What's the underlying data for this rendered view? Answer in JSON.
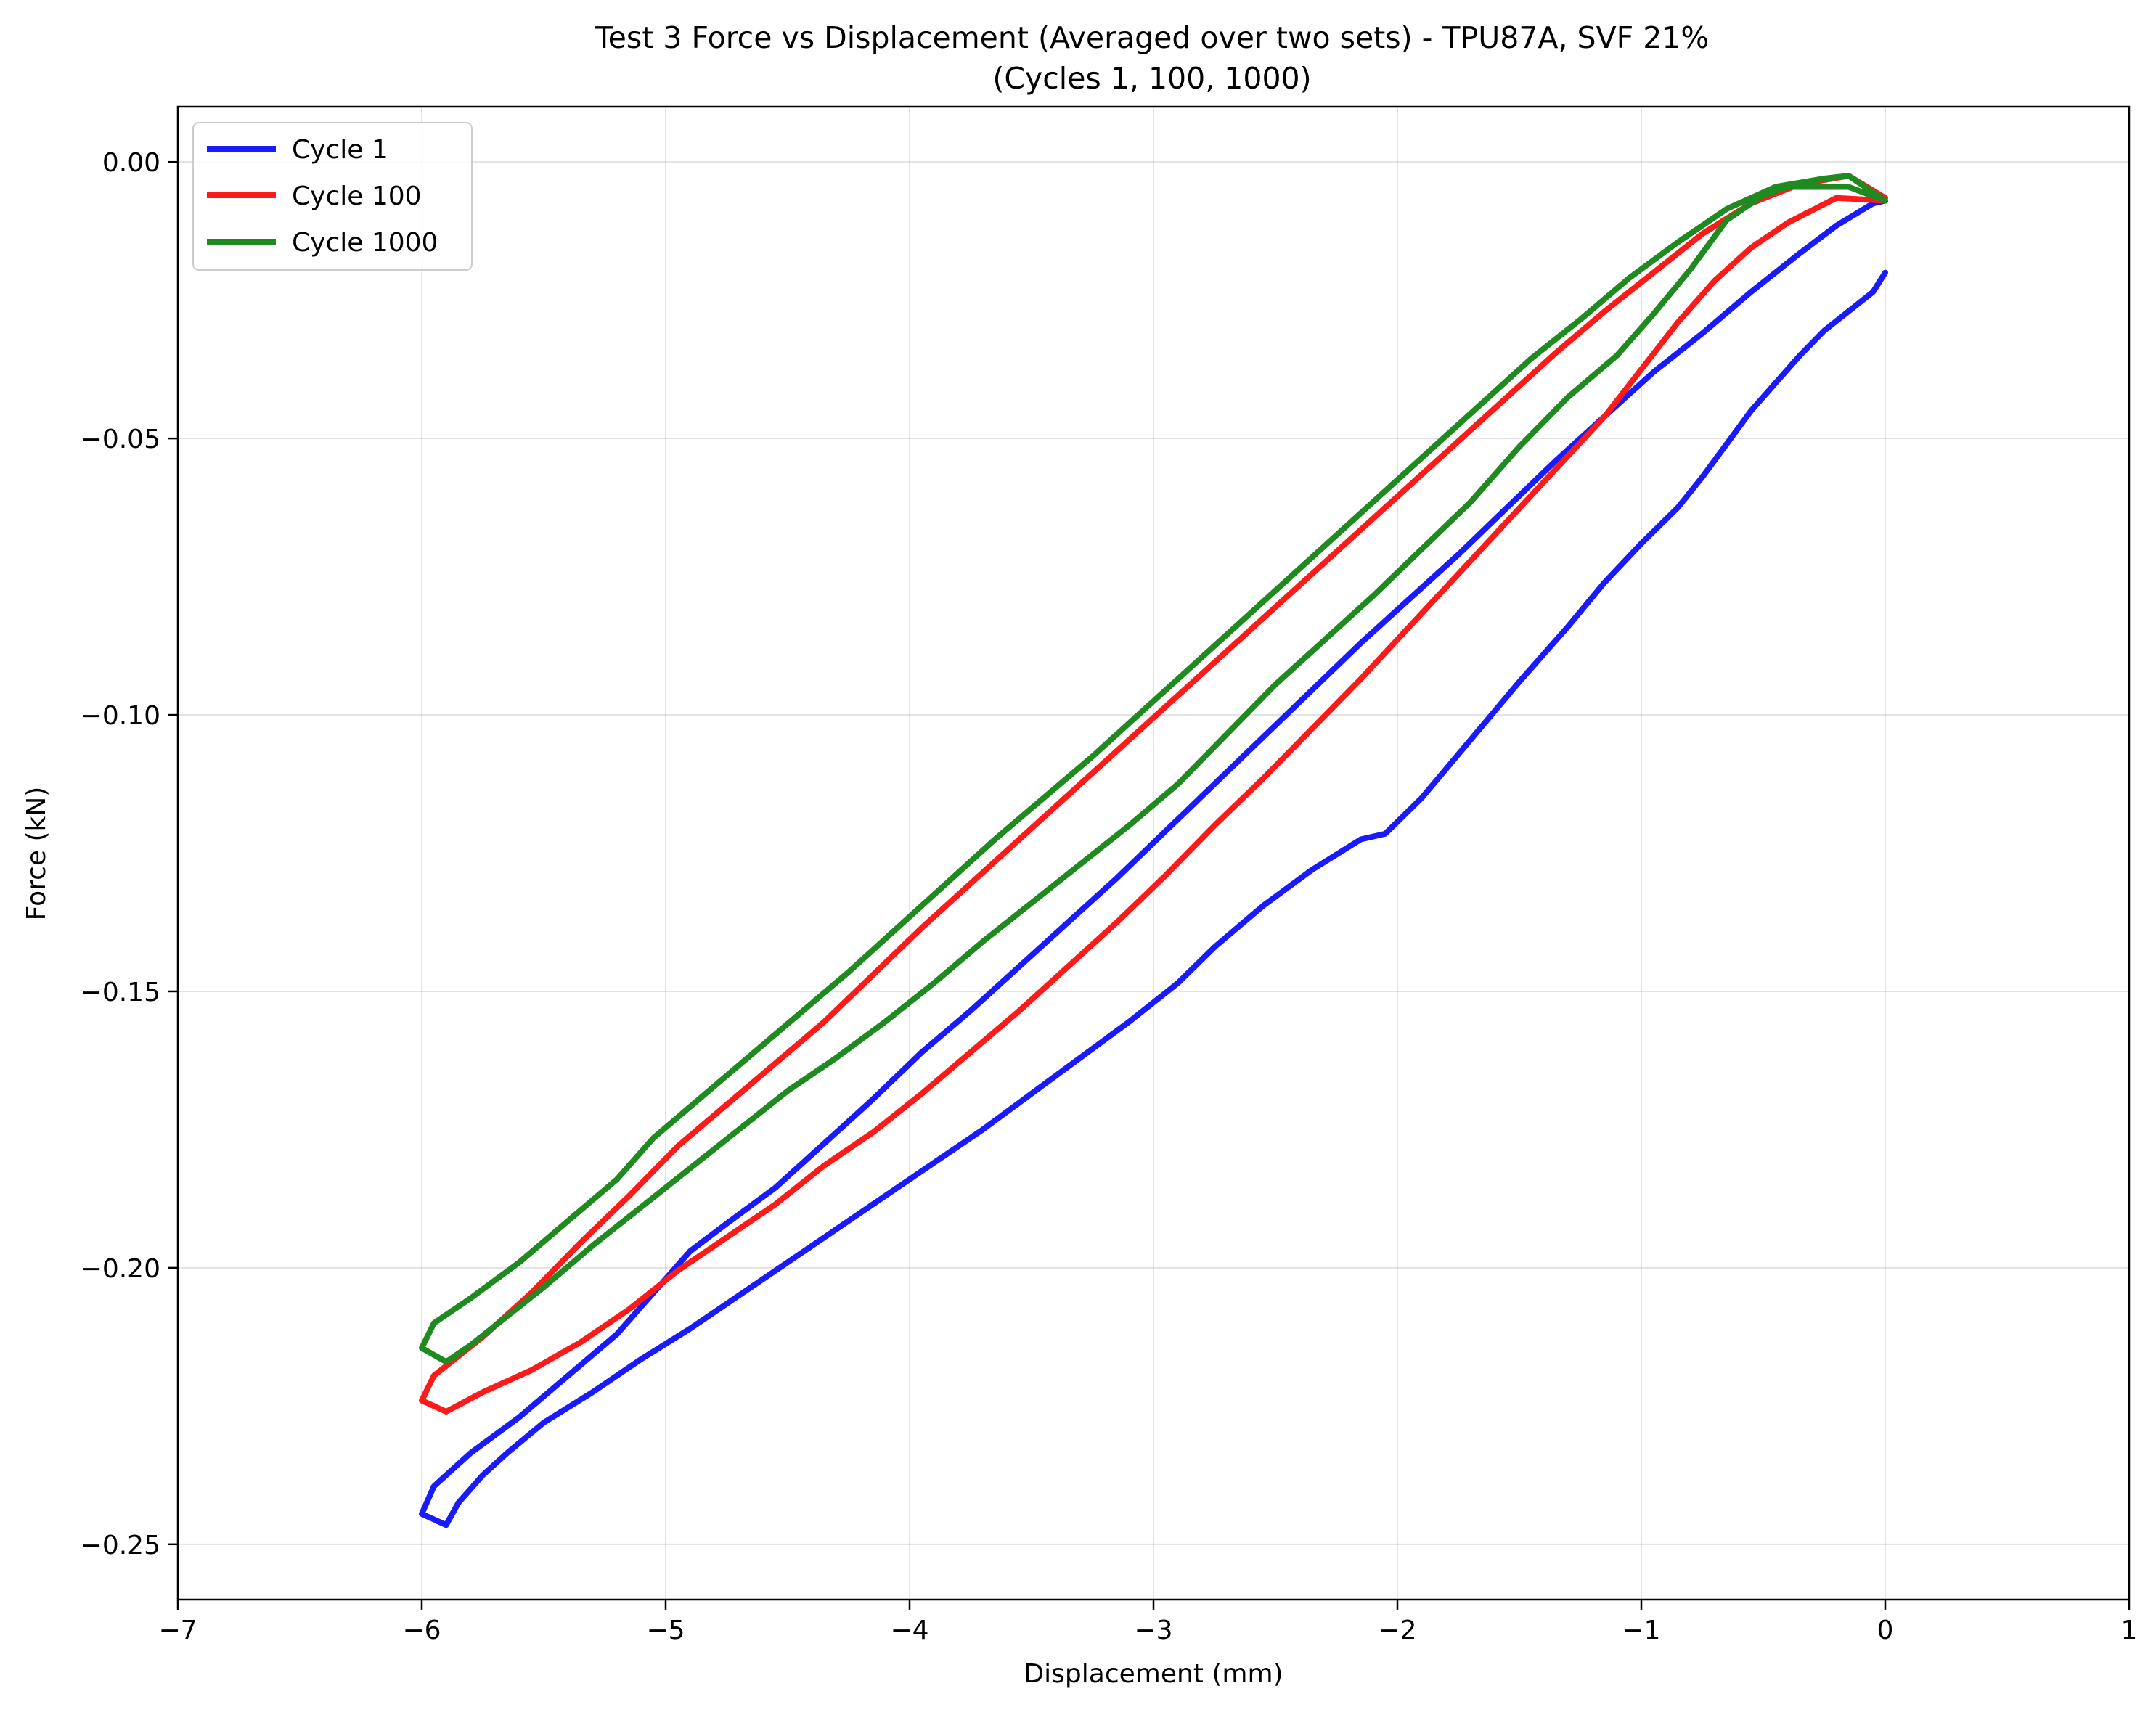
{
  "chart_data": {
    "type": "line",
    "title": "Test 3 Force vs Displacement (Averaged over two sets) - TPU87A, SVF 21%",
    "subtitle": "(Cycles 1, 100, 1000)",
    "xlabel": "Displacement (mm)",
    "ylabel": "Force (kN)",
    "xlim": [
      -7,
      1
    ],
    "ylim": [
      -0.26,
      0.01
    ],
    "grid": true,
    "legend_position": "top-left",
    "x_ticks": [
      {
        "value": -7,
        "label": "−7"
      },
      {
        "value": -6,
        "label": "−6"
      },
      {
        "value": -5,
        "label": "−5"
      },
      {
        "value": -4,
        "label": "−4"
      },
      {
        "value": -3,
        "label": "−3"
      },
      {
        "value": -2,
        "label": "−2"
      },
      {
        "value": -1,
        "label": "−1"
      },
      {
        "value": 0,
        "label": "0"
      },
      {
        "value": 1,
        "label": "1"
      }
    ],
    "y_ticks": [
      {
        "value": 0.0,
        "label": "0.00"
      },
      {
        "value": -0.05,
        "label": "−0.05"
      },
      {
        "value": -0.1,
        "label": "−0.10"
      },
      {
        "value": -0.15,
        "label": "−0.15"
      },
      {
        "value": -0.2,
        "label": "−0.20"
      },
      {
        "value": -0.25,
        "label": "−0.25"
      }
    ],
    "series": [
      {
        "name": "Cycle 1",
        "color": "#1a1aff",
        "points": [
          [
            0.0,
            -0.02
          ],
          [
            -0.05,
            -0.0235
          ],
          [
            -0.15,
            -0.027
          ],
          [
            -0.25,
            -0.0305
          ],
          [
            -0.35,
            -0.035
          ],
          [
            -0.45,
            -0.04
          ],
          [
            -0.55,
            -0.045
          ],
          [
            -0.65,
            -0.051
          ],
          [
            -0.75,
            -0.057
          ],
          [
            -0.85,
            -0.0625
          ],
          [
            -1.0,
            -0.069
          ],
          [
            -1.15,
            -0.076
          ],
          [
            -1.3,
            -0.084
          ],
          [
            -1.5,
            -0.094
          ],
          [
            -1.7,
            -0.1045
          ],
          [
            -1.9,
            -0.115
          ],
          [
            -2.05,
            -0.1215
          ],
          [
            -2.15,
            -0.1225
          ],
          [
            -2.35,
            -0.128
          ],
          [
            -2.55,
            -0.1345
          ],
          [
            -2.75,
            -0.142
          ],
          [
            -2.9,
            -0.1485
          ],
          [
            -3.1,
            -0.1555
          ],
          [
            -3.3,
            -0.162
          ],
          [
            -3.5,
            -0.1685
          ],
          [
            -3.7,
            -0.175
          ],
          [
            -3.9,
            -0.181
          ],
          [
            -4.1,
            -0.187
          ],
          [
            -4.3,
            -0.193
          ],
          [
            -4.5,
            -0.199
          ],
          [
            -4.7,
            -0.205
          ],
          [
            -4.9,
            -0.211
          ],
          [
            -5.1,
            -0.2165
          ],
          [
            -5.3,
            -0.2225
          ],
          [
            -5.5,
            -0.228
          ],
          [
            -5.65,
            -0.2335
          ],
          [
            -5.75,
            -0.2375
          ],
          [
            -5.85,
            -0.2425
          ],
          [
            -5.9,
            -0.2465
          ],
          [
            -6.0,
            -0.2445
          ],
          [
            -5.95,
            -0.2395
          ],
          [
            -5.8,
            -0.2335
          ],
          [
            -5.6,
            -0.227
          ],
          [
            -5.4,
            -0.2195
          ],
          [
            -5.2,
            -0.212
          ],
          [
            -5.05,
            -0.2045
          ],
          [
            -4.9,
            -0.197
          ],
          [
            -4.75,
            -0.192
          ],
          [
            -4.55,
            -0.1855
          ],
          [
            -4.35,
            -0.1775
          ],
          [
            -4.15,
            -0.1695
          ],
          [
            -3.95,
            -0.161
          ],
          [
            -3.75,
            -0.1535
          ],
          [
            -3.55,
            -0.1455
          ],
          [
            -3.35,
            -0.1375
          ],
          [
            -3.15,
            -0.1295
          ],
          [
            -2.95,
            -0.121
          ],
          [
            -2.75,
            -0.1125
          ],
          [
            -2.55,
            -0.104
          ],
          [
            -2.35,
            -0.0955
          ],
          [
            -2.15,
            -0.087
          ],
          [
            -1.95,
            -0.079
          ],
          [
            -1.75,
            -0.071
          ],
          [
            -1.55,
            -0.0625
          ],
          [
            -1.35,
            -0.054
          ],
          [
            -1.15,
            -0.046
          ],
          [
            -0.95,
            -0.038
          ],
          [
            -0.75,
            -0.031
          ],
          [
            -0.55,
            -0.0235
          ],
          [
            -0.35,
            -0.0165
          ],
          [
            -0.2,
            -0.0115
          ],
          [
            -0.05,
            -0.0075
          ],
          [
            0.0,
            -0.007
          ]
        ]
      },
      {
        "name": "Cycle 100",
        "color": "#ff1a1a",
        "points": [
          [
            0.0,
            -0.007
          ],
          [
            -0.2,
            -0.0065
          ],
          [
            -0.4,
            -0.011
          ],
          [
            -0.55,
            -0.0155
          ],
          [
            -0.7,
            -0.0215
          ],
          [
            -0.85,
            -0.029
          ],
          [
            -1.0,
            -0.0375
          ],
          [
            -1.15,
            -0.046
          ],
          [
            -1.35,
            -0.0555
          ],
          [
            -1.55,
            -0.065
          ],
          [
            -1.75,
            -0.0745
          ],
          [
            -1.95,
            -0.084
          ],
          [
            -2.15,
            -0.0935
          ],
          [
            -2.35,
            -0.1025
          ],
          [
            -2.55,
            -0.1115
          ],
          [
            -2.75,
            -0.12
          ],
          [
            -2.95,
            -0.129
          ],
          [
            -3.15,
            -0.1375
          ],
          [
            -3.35,
            -0.1455
          ],
          [
            -3.55,
            -0.1535
          ],
          [
            -3.75,
            -0.161
          ],
          [
            -3.95,
            -0.1685
          ],
          [
            -4.15,
            -0.1755
          ],
          [
            -4.35,
            -0.1815
          ],
          [
            -4.55,
            -0.1885
          ],
          [
            -4.75,
            -0.1945
          ],
          [
            -4.95,
            -0.2005
          ],
          [
            -5.15,
            -0.2075
          ],
          [
            -5.35,
            -0.2135
          ],
          [
            -5.55,
            -0.2185
          ],
          [
            -5.75,
            -0.2225
          ],
          [
            -5.9,
            -0.226
          ],
          [
            -6.0,
            -0.224
          ],
          [
            -5.95,
            -0.2195
          ],
          [
            -5.75,
            -0.2125
          ],
          [
            -5.55,
            -0.2045
          ],
          [
            -5.35,
            -0.1955
          ],
          [
            -5.15,
            -0.187
          ],
          [
            -4.95,
            -0.178
          ],
          [
            -4.75,
            -0.1705
          ],
          [
            -4.55,
            -0.163
          ],
          [
            -4.35,
            -0.1555
          ],
          [
            -4.15,
            -0.147
          ],
          [
            -3.95,
            -0.1385
          ],
          [
            -3.75,
            -0.1305
          ],
          [
            -3.55,
            -0.1225
          ],
          [
            -3.35,
            -0.1145
          ],
          [
            -3.15,
            -0.1065
          ],
          [
            -2.95,
            -0.0985
          ],
          [
            -2.75,
            -0.0905
          ],
          [
            -2.55,
            -0.0825
          ],
          [
            -2.35,
            -0.0745
          ],
          [
            -2.15,
            -0.0665
          ],
          [
            -1.95,
            -0.0585
          ],
          [
            -1.75,
            -0.0505
          ],
          [
            -1.55,
            -0.0425
          ],
          [
            -1.35,
            -0.0345
          ],
          [
            -1.15,
            -0.027
          ],
          [
            -0.95,
            -0.02
          ],
          [
            -0.75,
            -0.013
          ],
          [
            -0.55,
            -0.0075
          ],
          [
            -0.35,
            -0.004
          ],
          [
            -0.15,
            -0.0025
          ],
          [
            0.0,
            -0.0065
          ]
        ]
      },
      {
        "name": "Cycle 1000",
        "color": "#1f8a1f",
        "points": [
          [
            0.0,
            -0.007
          ],
          [
            -0.15,
            -0.0045
          ],
          [
            -0.4,
            -0.0045
          ],
          [
            -0.5,
            -0.006
          ],
          [
            -0.65,
            -0.0105
          ],
          [
            -0.8,
            -0.0195
          ],
          [
            -0.95,
            -0.0275
          ],
          [
            -1.1,
            -0.035
          ],
          [
            -1.3,
            -0.0425
          ],
          [
            -1.5,
            -0.0515
          ],
          [
            -1.7,
            -0.0615
          ],
          [
            -1.9,
            -0.07
          ],
          [
            -2.1,
            -0.0785
          ],
          [
            -2.3,
            -0.0865
          ],
          [
            -2.5,
            -0.0945
          ],
          [
            -2.7,
            -0.1035
          ],
          [
            -2.9,
            -0.1125
          ],
          [
            -3.1,
            -0.12
          ],
          [
            -3.3,
            -0.127
          ],
          [
            -3.5,
            -0.134
          ],
          [
            -3.7,
            -0.141
          ],
          [
            -3.9,
            -0.1485
          ],
          [
            -4.1,
            -0.1555
          ],
          [
            -4.3,
            -0.162
          ],
          [
            -4.5,
            -0.168
          ],
          [
            -4.7,
            -0.175
          ],
          [
            -4.9,
            -0.182
          ],
          [
            -5.1,
            -0.189
          ],
          [
            -5.3,
            -0.196
          ],
          [
            -5.5,
            -0.2035
          ],
          [
            -5.7,
            -0.2105
          ],
          [
            -5.8,
            -0.214
          ],
          [
            -5.9,
            -0.217
          ],
          [
            -6.0,
            -0.2145
          ],
          [
            -5.95,
            -0.21
          ],
          [
            -5.8,
            -0.2055
          ],
          [
            -5.6,
            -0.199
          ],
          [
            -5.4,
            -0.1915
          ],
          [
            -5.2,
            -0.184
          ],
          [
            -5.05,
            -0.1765
          ],
          [
            -4.85,
            -0.169
          ],
          [
            -4.65,
            -0.1615
          ],
          [
            -4.45,
            -0.154
          ],
          [
            -4.25,
            -0.1465
          ],
          [
            -4.05,
            -0.1385
          ],
          [
            -3.85,
            -0.1305
          ],
          [
            -3.65,
            -0.1225
          ],
          [
            -3.45,
            -0.115
          ],
          [
            -3.25,
            -0.1075
          ],
          [
            -3.05,
            -0.0995
          ],
          [
            -2.85,
            -0.0915
          ],
          [
            -2.65,
            -0.0835
          ],
          [
            -2.45,
            -0.0755
          ],
          [
            -2.25,
            -0.0675
          ],
          [
            -2.05,
            -0.0595
          ],
          [
            -1.85,
            -0.0515
          ],
          [
            -1.65,
            -0.0435
          ],
          [
            -1.45,
            -0.0355
          ],
          [
            -1.25,
            -0.0285
          ],
          [
            -1.05,
            -0.021
          ],
          [
            -0.85,
            -0.0145
          ],
          [
            -0.65,
            -0.0085
          ],
          [
            -0.45,
            -0.0045
          ],
          [
            -0.25,
            -0.003
          ],
          [
            -0.15,
            -0.0025
          ],
          [
            0.0,
            -0.007
          ]
        ]
      }
    ]
  }
}
